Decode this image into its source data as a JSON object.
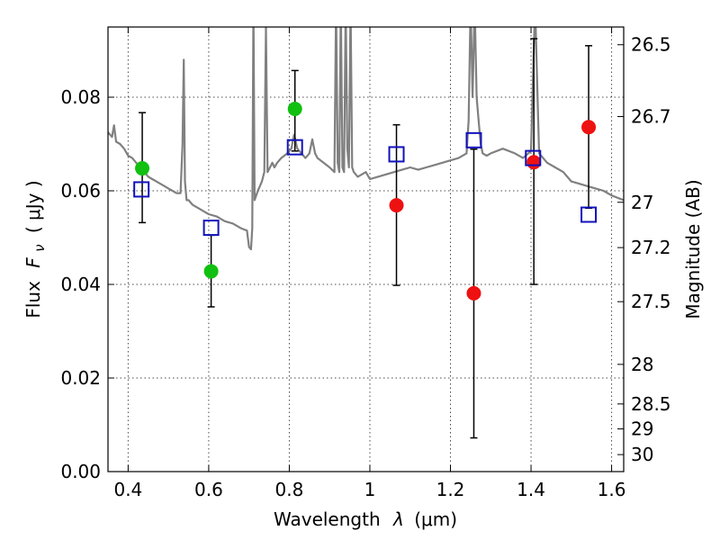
{
  "chart_data": {
    "type": "scatter",
    "title": "",
    "xlabel": "Wavelength",
    "xlabel_symbol": "λ",
    "xlabel_unit": "(μm)",
    "ylabel": "Flux",
    "ylabel_symbol": "F",
    "ylabel_subscript": "ν",
    "ylabel_unit": "(  μJy )",
    "y2label": "Magnitude (AB)",
    "xlim": [
      0.35,
      1.63
    ],
    "ylim": [
      0.0,
      0.095
    ],
    "xticks": [
      0.4,
      0.6,
      0.8,
      1.0,
      1.2,
      1.4,
      1.6
    ],
    "xtick_labels": [
      "0.4",
      "0.6",
      "0.8",
      "1",
      "1.2",
      "1.4",
      "1.6"
    ],
    "yticks": [
      0.0,
      0.02,
      0.04,
      0.06,
      0.08
    ],
    "ytick_labels": [
      "0.00",
      "0.02",
      "0.04",
      "0.06",
      "0.08"
    ],
    "y2ticks": [
      {
        "mag": 26.5,
        "label": "26.5"
      },
      {
        "mag": 26.7,
        "label": "26.7"
      },
      {
        "mag": 27.0,
        "label": "27"
      },
      {
        "mag": 27.2,
        "label": "27.2"
      },
      {
        "mag": 27.5,
        "label": "27.5"
      },
      {
        "mag": 28.0,
        "label": "28"
      },
      {
        "mag": 28.5,
        "label": "28.5"
      },
      {
        "mag": 29.0,
        "label": "29"
      },
      {
        "mag": 30.0,
        "label": "30"
      }
    ],
    "grid": true,
    "colors": {
      "green": "#11c011",
      "red": "#ee1111",
      "model_box": "#1111bb",
      "spectrum": "#808080",
      "errorbar": "#000000"
    },
    "series": [
      {
        "marker": "circle",
        "color": "#11c011",
        "points": [
          {
            "x": 0.435,
            "y": 0.0648,
            "ylo": 0.0532,
            "yhi": 0.0767
          },
          {
            "x": 0.606,
            "y": 0.0428,
            "ylo": 0.0352,
            "yhi": 0.0505
          },
          {
            "x": 0.814,
            "y": 0.0775,
            "ylo": 0.0685,
            "yhi": 0.0857
          }
        ]
      },
      {
        "marker": "circle",
        "color": "#ee1111",
        "points": [
          {
            "x": 1.066,
            "y": 0.0569,
            "ylo": 0.0398,
            "yhi": 0.0741
          },
          {
            "x": 1.258,
            "y": 0.0381,
            "ylo": 0.0072,
            "yhi": 0.0689
          },
          {
            "x": 1.407,
            "y": 0.0661,
            "ylo": 0.04,
            "yhi": 0.0925
          },
          {
            "x": 1.543,
            "y": 0.0736,
            "ylo": 0.0563,
            "yhi": 0.091
          }
        ]
      },
      {
        "marker": "open-square",
        "color": "#1111bb",
        "points": [
          {
            "x": 0.433,
            "y": 0.0603
          },
          {
            "x": 0.606,
            "y": 0.0521
          },
          {
            "x": 0.814,
            "y": 0.0693
          },
          {
            "x": 1.066,
            "y": 0.0678
          },
          {
            "x": 1.258,
            "y": 0.0708
          },
          {
            "x": 1.405,
            "y": 0.067
          },
          {
            "x": 1.543,
            "y": 0.0549
          }
        ]
      }
    ],
    "spectrum": {
      "color": "#808080",
      "x": [
        0.35,
        0.36,
        0.365,
        0.37,
        0.38,
        0.39,
        0.4,
        0.41,
        0.42,
        0.43,
        0.44,
        0.45,
        0.46,
        0.47,
        0.48,
        0.49,
        0.5,
        0.51,
        0.52,
        0.53,
        0.535,
        0.538,
        0.541,
        0.545,
        0.55,
        0.56,
        0.58,
        0.6,
        0.62,
        0.64,
        0.66,
        0.68,
        0.695,
        0.7,
        0.705,
        0.708,
        0.711,
        0.714,
        0.718,
        0.722,
        0.727,
        0.732,
        0.738,
        0.742,
        0.746,
        0.752,
        0.758,
        0.763,
        0.77,
        0.78,
        0.795,
        0.805,
        0.812,
        0.82,
        0.83,
        0.84,
        0.85,
        0.857,
        0.864,
        0.87,
        0.885,
        0.9,
        0.912,
        0.916,
        0.92,
        0.924,
        0.928,
        0.932,
        0.936,
        0.94,
        0.944,
        0.948,
        0.952,
        0.956,
        0.96,
        0.97,
        0.99,
        1.0,
        1.02,
        1.04,
        1.06,
        1.08,
        1.1,
        1.12,
        1.14,
        1.16,
        1.18,
        1.2,
        1.22,
        1.24,
        1.245,
        1.25,
        1.255,
        1.26,
        1.265,
        1.27,
        1.275,
        1.28,
        1.29,
        1.3,
        1.33,
        1.36,
        1.38,
        1.4,
        1.41,
        1.42,
        1.44,
        1.46,
        1.48,
        1.5,
        1.52,
        1.54,
        1.56,
        1.58,
        1.6,
        1.63
      ],
      "y": [
        0.0725,
        0.0715,
        0.074,
        0.0705,
        0.07,
        0.069,
        0.0675,
        0.067,
        0.066,
        0.065,
        0.064,
        0.063,
        0.0625,
        0.062,
        0.0615,
        0.061,
        0.0605,
        0.06,
        0.0595,
        0.0595,
        0.07,
        0.088,
        0.062,
        0.058,
        0.058,
        0.057,
        0.056,
        0.055,
        0.0545,
        0.0535,
        0.053,
        0.052,
        0.0515,
        0.048,
        0.0475,
        0.052,
        0.1,
        0.058,
        0.059,
        0.06,
        0.061,
        0.062,
        0.064,
        0.095,
        0.064,
        0.065,
        0.066,
        0.065,
        0.066,
        0.067,
        0.068,
        0.069,
        0.072,
        0.069,
        0.068,
        0.067,
        0.068,
        0.071,
        0.068,
        0.067,
        0.066,
        0.065,
        0.064,
        0.1,
        0.066,
        0.064,
        0.1,
        0.065,
        0.064,
        0.1,
        0.069,
        0.065,
        0.1,
        0.065,
        0.064,
        0.063,
        0.064,
        0.0625,
        0.063,
        0.0635,
        0.064,
        0.0645,
        0.065,
        0.0645,
        0.065,
        0.0655,
        0.066,
        0.0665,
        0.067,
        0.068,
        0.075,
        0.1,
        0.08,
        0.1,
        0.08,
        0.075,
        0.07,
        0.068,
        0.0675,
        0.068,
        0.069,
        0.068,
        0.067,
        0.0685,
        0.1,
        0.068,
        0.066,
        0.065,
        0.064,
        0.062,
        0.0615,
        0.061,
        0.0605,
        0.06,
        0.059,
        0.058
      ]
    }
  }
}
